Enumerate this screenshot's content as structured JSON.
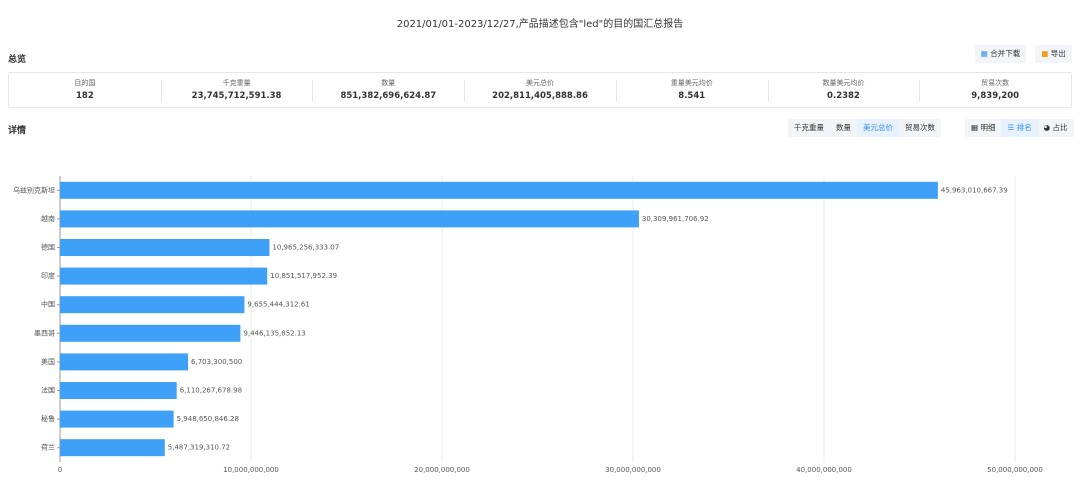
{
  "title": "2021/01/01-2023/12/27,产品描述包含\"led\"的目的国汇总报告",
  "overview": {
    "label": "总览",
    "buttons": [
      "合并下载",
      "导出"
    ],
    "stats": [
      {
        "label": "目的国",
        "value": "182"
      },
      {
        "label": "千克重量",
        "value": "23,745,712,591.38"
      },
      {
        "label": "数量",
        "value": "851,382,696,624.87"
      },
      {
        "label": "美元总价",
        "value": "202,811,405,888.86"
      },
      {
        "label": "重量美元均价",
        "value": "8.541"
      },
      {
        "label": "数量美元均价",
        "value": "0.2382"
      },
      {
        "label": "贸易次数",
        "value": "9,839,200"
      }
    ]
  },
  "detail": {
    "label": "详情",
    "metrics": [
      "千克重量",
      "数量",
      "美元总价",
      "贸易次数"
    ],
    "views": [
      "明细",
      "排名",
      "占比"
    ]
  },
  "chart_data": {
    "type": "hbar",
    "color": "#3fa0f7",
    "grid": true,
    "categories": [
      "乌兹别克斯坦",
      "越南",
      "德国",
      "印度",
      "中国",
      "墨西哥",
      "美国",
      "法国",
      "秘鲁",
      "荷兰"
    ],
    "values": [
      45963010667.39,
      30309961706.92,
      10965256333.07,
      10851517952.39,
      9655444312.61,
      9446135852.13,
      6703300500,
      6110267678.98,
      5948650846.28,
      5487319310.72
    ],
    "value_labels": [
      "45,963,010,667.39",
      "30,309,961,706.92",
      "10,965,256,333.07",
      "10,851,517,952.39",
      "9,655,444,312.61",
      "9,446,135,852.13",
      "6,703,300,500",
      "6,110,267,678.98",
      "5,948,650,846.28",
      "5,487,319,310.72"
    ],
    "xlim": [
      0,
      50000000000
    ],
    "xticks": [
      0,
      {
        "value": 10000000000,
        "label": "10,000,000,000"
      },
      {
        "value": 20000000000,
        "label": "20,000,000,000"
      },
      {
        "value": 30000000000,
        "label": "30,000,000,000"
      },
      {
        "value": 40000000000,
        "label": "40,000,000,000"
      },
      {
        "value": 50000000000,
        "label": "50,000,000,000"
      }
    ]
  }
}
